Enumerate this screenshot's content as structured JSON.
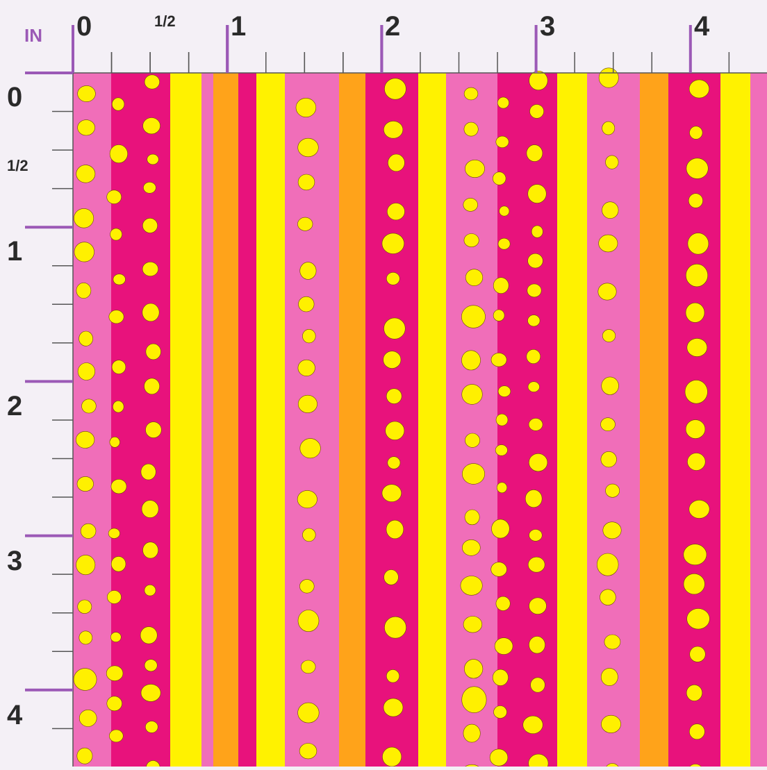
{
  "ruler": {
    "unit_label": "IN",
    "top_labels": [
      "0",
      "1/2",
      "1",
      "2",
      "3",
      "4"
    ],
    "left_labels": [
      "0",
      "1/2",
      "1",
      "2",
      "3",
      "4"
    ],
    "ruler_color": "#9b59b6"
  },
  "pattern": {
    "description_colors": {
      "light_pink": "#f06eb9",
      "magenta": "#e8127c",
      "yellow": "#fff200",
      "orange": "#ffa31a",
      "dot": "#fff000"
    }
  }
}
